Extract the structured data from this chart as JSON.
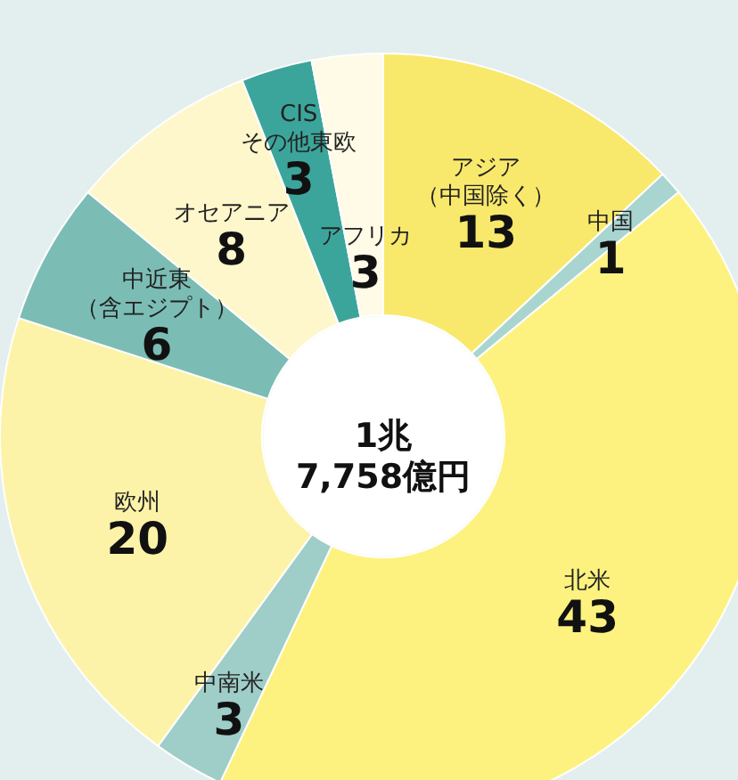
{
  "chart_data": {
    "type": "donut",
    "title": "1兆\n7,758億円",
    "categories": [
      "アジア（中国除く）",
      "中国",
      "北米",
      "中南米",
      "欧州",
      "中近東（含エジプト）",
      "オセアニア",
      "CISその他東欧",
      "アフリカ"
    ],
    "values": [
      13,
      1,
      43,
      3,
      20,
      6,
      8,
      3,
      3
    ],
    "colors": [
      "#f8e96c",
      "#a9d5d1",
      "#fdf27f",
      "#9fcdc8",
      "#fdf3a8",
      "#7bbdb4",
      "#fdf7cb",
      "#3ca59b",
      "#fffbe6"
    ],
    "data_labels": true
  }
}
